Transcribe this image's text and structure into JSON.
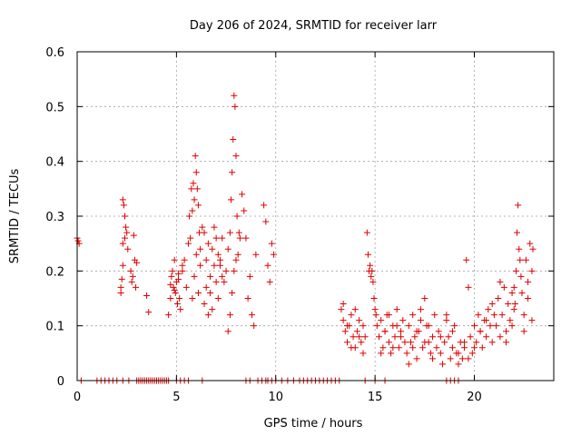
{
  "chart_data": {
    "type": "scatter",
    "title": "Day 206 of 2024, SRMTID for receiver larr",
    "xlabel": "GPS time / hours",
    "ylabel": "SRMTID / TECUs",
    "xlim": [
      0,
      24
    ],
    "ylim": [
      0,
      0.6
    ],
    "xticks": [
      0,
      5,
      10,
      15,
      20
    ],
    "yticks": [
      0,
      0.1,
      0.2,
      0.3,
      0.4,
      0.5,
      0.6
    ],
    "xtick_labels": [
      "0",
      "5",
      "10",
      "15",
      "20"
    ],
    "ytick_labels": [
      "0",
      "0.1",
      "0.2",
      "0.3",
      "0.4",
      "0.5",
      "0.6"
    ],
    "grid": true,
    "marker": "+",
    "color": "#e00000",
    "series": [
      {
        "name": "SRMTID",
        "x": [
          0.0,
          0.05,
          0.1,
          2.2,
          2.25,
          2.3,
          2.3,
          2.35,
          2.4,
          2.45,
          2.5,
          2.55,
          2.2,
          2.3,
          2.4,
          2.7,
          2.75,
          2.8,
          2.85,
          2.9,
          2.95,
          3.0,
          3.5,
          3.6,
          4.6,
          4.7,
          4.75,
          4.8,
          4.85,
          4.9,
          4.95,
          5.0,
          5.05,
          5.1,
          5.15,
          5.2,
          5.3,
          4.7,
          4.9,
          5.1,
          5.3,
          5.4,
          5.5,
          5.6,
          5.65,
          5.7,
          5.75,
          5.8,
          5.85,
          5.9,
          5.95,
          6.0,
          6.05,
          6.1,
          6.15,
          6.2,
          5.8,
          5.9,
          6.0,
          6.1,
          6.2,
          6.3,
          6.4,
          6.5,
          6.6,
          6.7,
          6.8,
          6.9,
          7.0,
          7.1,
          7.2,
          7.3,
          7.4,
          7.5,
          6.4,
          6.5,
          6.6,
          6.7,
          6.8,
          6.9,
          7.0,
          7.1,
          7.2,
          7.3,
          7.6,
          7.7,
          7.75,
          7.8,
          7.85,
          7.9,
          7.95,
          8.0,
          8.05,
          8.1,
          8.15,
          8.2,
          8.3,
          8.4,
          7.6,
          7.7,
          7.8,
          7.9,
          8.0,
          8.5,
          8.6,
          8.7,
          8.8,
          8.9,
          9.0,
          9.4,
          9.5,
          9.6,
          9.7,
          9.8,
          9.9,
          13.3,
          13.4,
          13.5,
          13.6,
          13.7,
          13.8,
          13.9,
          14.0,
          14.1,
          14.2,
          14.3,
          14.4,
          14.5,
          13.4,
          13.6,
          13.8,
          14.0,
          14.2,
          14.4,
          14.6,
          14.65,
          14.7,
          14.75,
          14.8,
          14.85,
          14.9,
          14.95,
          15.0,
          15.05,
          15.1,
          15.2,
          15.3,
          15.4,
          15.5,
          15.6,
          15.7,
          15.8,
          15.9,
          16.0,
          16.1,
          16.2,
          16.3,
          16.4,
          16.5,
          15.3,
          15.5,
          15.7,
          15.9,
          16.1,
          16.3,
          16.6,
          16.7,
          16.8,
          16.9,
          17.0,
          17.1,
          17.2,
          17.3,
          17.4,
          17.5,
          17.6,
          17.7,
          17.8,
          17.9,
          18.0,
          16.7,
          16.9,
          17.1,
          17.3,
          17.5,
          17.7,
          17.9,
          18.1,
          18.2,
          18.3,
          18.4,
          18.5,
          18.6,
          18.7,
          18.8,
          18.9,
          19.0,
          19.1,
          19.2,
          19.3,
          19.4,
          19.5,
          18.3,
          18.6,
          18.9,
          19.2,
          19.5,
          19.6,
          19.7,
          19.8,
          19.9,
          20.0,
          20.1,
          20.2,
          20.3,
          20.4,
          20.5,
          20.6,
          20.7,
          20.8,
          20.9,
          21.0,
          19.7,
          20.0,
          20.3,
          20.6,
          20.9,
          21.1,
          21.2,
          21.3,
          21.4,
          21.5,
          21.6,
          21.7,
          21.8,
          21.9,
          22.0,
          21.3,
          21.6,
          21.9,
          22.0,
          22.05,
          22.1,
          22.15,
          22.2,
          22.25,
          22.3,
          22.35,
          22.4,
          22.5,
          22.6,
          22.7,
          22.8,
          22.9,
          22.95,
          22.5,
          22.7,
          22.9
        ],
        "y": [
          0.26,
          0.255,
          0.25,
          0.16,
          0.185,
          0.25,
          0.33,
          0.32,
          0.3,
          0.28,
          0.27,
          0.24,
          0.17,
          0.21,
          0.26,
          0.2,
          0.18,
          0.19,
          0.265,
          0.22,
          0.17,
          0.215,
          0.155,
          0.125,
          0.12,
          0.15,
          0.19,
          0.2,
          0.17,
          0.22,
          0.16,
          0.18,
          0.14,
          0.195,
          0.15,
          0.13,
          0.21,
          0.175,
          0.165,
          0.185,
          0.2,
          0.22,
          0.17,
          0.25,
          0.3,
          0.26,
          0.35,
          0.31,
          0.36,
          0.33,
          0.41,
          0.38,
          0.35,
          0.32,
          0.27,
          0.24,
          0.15,
          0.19,
          0.23,
          0.16,
          0.21,
          0.28,
          0.27,
          0.22,
          0.25,
          0.19,
          0.24,
          0.28,
          0.26,
          0.23,
          0.21,
          0.26,
          0.18,
          0.2,
          0.14,
          0.17,
          0.12,
          0.16,
          0.13,
          0.21,
          0.18,
          0.15,
          0.22,
          0.19,
          0.24,
          0.27,
          0.33,
          0.38,
          0.44,
          0.52,
          0.5,
          0.41,
          0.3,
          0.23,
          0.27,
          0.26,
          0.34,
          0.31,
          0.09,
          0.12,
          0.16,
          0.2,
          0.22,
          0.26,
          0.15,
          0.19,
          0.12,
          0.1,
          0.23,
          0.32,
          0.29,
          0.21,
          0.18,
          0.25,
          0.23,
          0.13,
          0.11,
          0.09,
          0.07,
          0.1,
          0.12,
          0.08,
          0.06,
          0.09,
          0.11,
          0.07,
          0.05,
          0.08,
          0.14,
          0.1,
          0.06,
          0.13,
          0.08,
          0.1,
          0.27,
          0.23,
          0.2,
          0.21,
          0.19,
          0.2,
          0.18,
          0.15,
          0.13,
          0.12,
          0.1,
          0.08,
          0.11,
          0.06,
          0.09,
          0.12,
          0.07,
          0.05,
          0.1,
          0.08,
          0.13,
          0.06,
          0.09,
          0.11,
          0.07,
          0.05,
          0.09,
          0.12,
          0.06,
          0.1,
          0.08,
          0.05,
          0.1,
          0.07,
          0.12,
          0.08,
          0.04,
          0.09,
          0.11,
          0.06,
          0.15,
          0.1,
          0.07,
          0.05,
          0.08,
          0.12,
          0.03,
          0.06,
          0.09,
          0.13,
          0.07,
          0.1,
          0.04,
          0.06,
          0.09,
          0.05,
          0.03,
          0.07,
          0.11,
          0.08,
          0.04,
          0.06,
          0.1,
          0.05,
          0.03,
          0.07,
          0.04,
          0.06,
          0.08,
          0.12,
          0.09,
          0.05,
          0.07,
          0.22,
          0.17,
          0.08,
          0.05,
          0.1,
          0.07,
          0.12,
          0.09,
          0.06,
          0.11,
          0.08,
          0.13,
          0.1,
          0.07,
          0.12,
          0.04,
          0.06,
          0.09,
          0.11,
          0.14,
          0.1,
          0.15,
          0.08,
          0.12,
          0.17,
          0.09,
          0.14,
          0.11,
          0.16,
          0.13,
          0.18,
          0.07,
          0.1,
          0.17,
          0.14,
          0.2,
          0.27,
          0.32,
          0.24,
          0.22,
          0.19,
          0.16,
          0.12,
          0.22,
          0.18,
          0.25,
          0.2,
          0.24,
          0.09,
          0.15,
          0.11
        ],
        "zero_x": [
          0.2,
          1.0,
          1.2,
          1.4,
          1.6,
          1.8,
          2.0,
          2.3,
          2.6,
          3.0,
          3.1,
          3.2,
          3.3,
          3.4,
          3.5,
          3.6,
          3.7,
          3.8,
          3.9,
          4.0,
          4.1,
          4.2,
          4.3,
          4.4,
          4.5,
          4.6,
          5.0,
          5.2,
          5.4,
          5.6,
          6.3,
          8.5,
          8.7,
          9.1,
          9.3,
          9.5,
          9.6,
          9.8,
          10.0,
          10.3,
          10.6,
          10.9,
          11.2,
          11.4,
          11.6,
          11.8,
          12.0,
          12.2,
          12.4,
          12.6,
          12.8,
          13.0,
          13.2,
          14.5,
          15.0,
          15.5,
          18.6,
          18.8,
          19.0,
          19.2
        ]
      }
    ]
  }
}
